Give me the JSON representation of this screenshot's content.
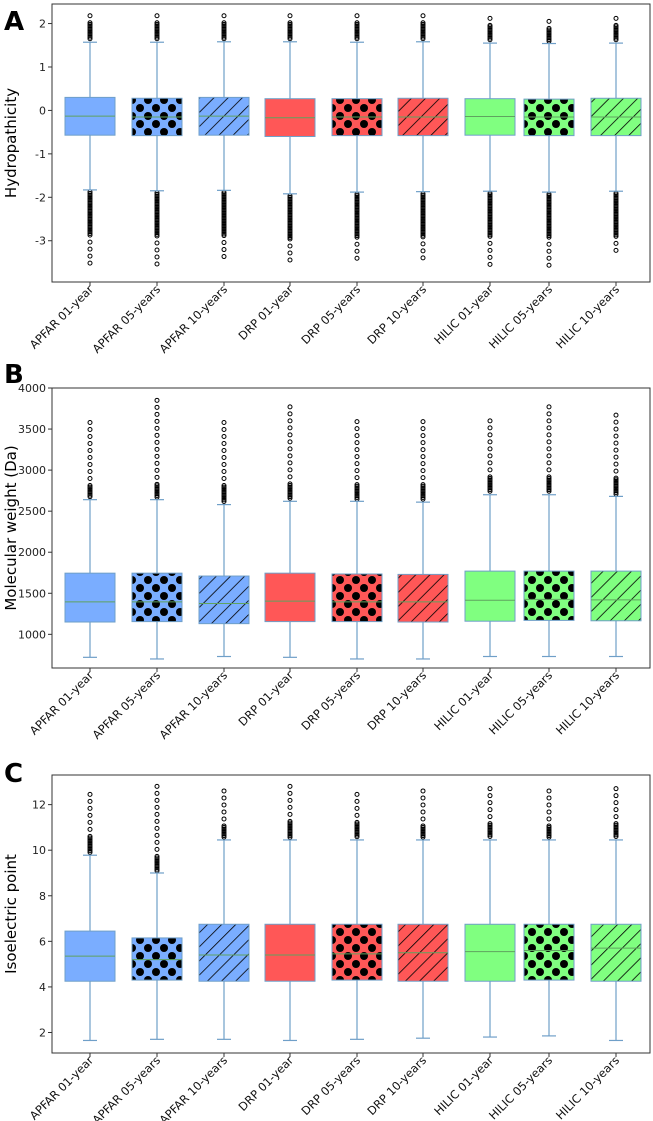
{
  "colors": {
    "APFAR": "#7aadff",
    "DRP": "#ff5757",
    "HILIC": "#80ff80",
    "median": "#5fa35f",
    "whisker": "#6f9fc8",
    "outline": "#6f9fc8"
  },
  "chart_data": [
    {
      "type": "box",
      "panel_label": "A",
      "title": "",
      "xlabel": "",
      "ylabel": "Hydropathicity",
      "ylim": [
        -3.95,
        2.45
      ],
      "yticks": [
        -3,
        -2,
        -1,
        0,
        1,
        2
      ],
      "categories": [
        "APFAR 01-year",
        "APFAR 05-years",
        "APFAR 10-years",
        "DRP 01-year",
        "DRP 05-years",
        "DRP 10-years",
        "HILIC 01-year",
        "HILIC 05-years",
        "HILIC 10-years"
      ],
      "groups": [
        "APFAR",
        "APFAR",
        "APFAR",
        "DRP",
        "DRP",
        "DRP",
        "HILIC",
        "HILIC",
        "HILIC"
      ],
      "patterns": [
        "solid",
        "dots",
        "hatch",
        "solid",
        "dots",
        "hatch",
        "solid",
        "dots",
        "hatch"
      ],
      "boxes": [
        {
          "q1": -0.57,
          "median": -0.13,
          "q3": 0.3,
          "whisker_low": -1.83,
          "whisker_high": 1.57,
          "outlier_low": -3.6,
          "outlier_high": 2.18
        },
        {
          "q1": -0.58,
          "median": -0.15,
          "q3": 0.28,
          "whisker_low": -1.85,
          "whisker_high": 1.57,
          "outlier_low": -3.65,
          "outlier_high": 2.18
        },
        {
          "q1": -0.57,
          "median": -0.13,
          "q3": 0.3,
          "whisker_low": -1.84,
          "whisker_high": 1.58,
          "outlier_low": -3.48,
          "outlier_high": 2.18
        },
        {
          "q1": -0.6,
          "median": -0.17,
          "q3": 0.27,
          "whisker_low": -1.92,
          "whisker_high": 1.58,
          "outlier_low": -3.6,
          "outlier_high": 2.18
        },
        {
          "q1": -0.58,
          "median": -0.15,
          "q3": 0.27,
          "whisker_low": -1.88,
          "whisker_high": 1.57,
          "outlier_low": -3.5,
          "outlier_high": 2.18
        },
        {
          "q1": -0.58,
          "median": -0.15,
          "q3": 0.28,
          "whisker_low": -1.87,
          "whisker_high": 1.58,
          "outlier_low": -3.42,
          "outlier_high": 2.18
        },
        {
          "q1": -0.57,
          "median": -0.14,
          "q3": 0.27,
          "whisker_low": -1.86,
          "whisker_high": 1.55,
          "outlier_low": -3.65,
          "outlier_high": 2.12
        },
        {
          "q1": -0.58,
          "median": -0.15,
          "q3": 0.26,
          "whisker_low": -1.88,
          "whisker_high": 1.54,
          "outlier_low": -3.6,
          "outlier_high": 2.05
        },
        {
          "q1": -0.58,
          "median": -0.15,
          "q3": 0.28,
          "whisker_low": -1.86,
          "whisker_high": 1.55,
          "outlier_low": -3.38,
          "outlier_high": 2.12
        }
      ]
    },
    {
      "type": "box",
      "panel_label": "B",
      "title": "",
      "xlabel": "",
      "ylabel": "Molecular weight (Da)",
      "ylim": [
        590,
        4000
      ],
      "yticks": [
        1000,
        1500,
        2000,
        2500,
        3000,
        3500,
        4000
      ],
      "categories": [
        "APFAR 01-year",
        "APFAR 05-years",
        "APFAR 10-years",
        "DRP 01-year",
        "DRP 05-years",
        "DRP 10-years",
        "HILIC 01-year",
        "HILIC 05-years",
        "HILIC 10-years"
      ],
      "groups": [
        "APFAR",
        "APFAR",
        "APFAR",
        "DRP",
        "DRP",
        "DRP",
        "HILIC",
        "HILIC",
        "HILIC"
      ],
      "patterns": [
        "solid",
        "dots",
        "hatch",
        "solid",
        "dots",
        "hatch",
        "solid",
        "dots",
        "hatch"
      ],
      "boxes": [
        {
          "q1": 1150,
          "median": 1395,
          "q3": 1745,
          "whisker_low": 720,
          "whisker_high": 2640,
          "outlier_low": null,
          "outlier_high": 3580
        },
        {
          "q1": 1155,
          "median": 1395,
          "q3": 1745,
          "whisker_low": 700,
          "whisker_high": 2640,
          "outlier_low": null,
          "outlier_high": 3850
        },
        {
          "q1": 1130,
          "median": 1375,
          "q3": 1710,
          "whisker_low": 730,
          "whisker_high": 2580,
          "outlier_low": null,
          "outlier_high": 3580
        },
        {
          "q1": 1155,
          "median": 1405,
          "q3": 1745,
          "whisker_low": 720,
          "whisker_high": 2620,
          "outlier_low": null,
          "outlier_high": 3770
        },
        {
          "q1": 1155,
          "median": 1395,
          "q3": 1735,
          "whisker_low": 700,
          "whisker_high": 2620,
          "outlier_low": null,
          "outlier_high": 3590
        },
        {
          "q1": 1150,
          "median": 1395,
          "q3": 1730,
          "whisker_low": 700,
          "whisker_high": 2610,
          "outlier_low": null,
          "outlier_high": 3590
        },
        {
          "q1": 1160,
          "median": 1415,
          "q3": 1770,
          "whisker_low": 730,
          "whisker_high": 2700,
          "outlier_low": null,
          "outlier_high": 3600
        },
        {
          "q1": 1170,
          "median": 1425,
          "q3": 1770,
          "whisker_low": 730,
          "whisker_high": 2700,
          "outlier_low": null,
          "outlier_high": 3770
        },
        {
          "q1": 1165,
          "median": 1420,
          "q3": 1770,
          "whisker_low": 730,
          "whisker_high": 2680,
          "outlier_low": null,
          "outlier_high": 3670
        }
      ]
    },
    {
      "type": "box",
      "panel_label": "C",
      "title": "",
      "xlabel": "",
      "ylabel": "Isoelectric point",
      "ylim": [
        1.1,
        13.3
      ],
      "yticks": [
        2,
        4,
        6,
        8,
        10,
        12
      ],
      "categories": [
        "APFAR 01-year",
        "APFAR 05-years",
        "APFAR 10-years",
        "DRP 01-year",
        "DRP 05-years",
        "DRP 10-years",
        "HILIC 01-year",
        "HILIC 05-years",
        "HILIC 10-years"
      ],
      "groups": [
        "APFAR",
        "APFAR",
        "APFAR",
        "DRP",
        "DRP",
        "DRP",
        "HILIC",
        "HILIC",
        "HILIC"
      ],
      "patterns": [
        "solid",
        "dots",
        "hatch",
        "solid",
        "dots",
        "hatch",
        "solid",
        "dots",
        "hatch"
      ],
      "boxes": [
        {
          "q1": 4.25,
          "median": 5.35,
          "q3": 6.45,
          "whisker_low": 1.65,
          "whisker_high": 9.78,
          "outlier_low": null,
          "outlier_high": 12.45
        },
        {
          "q1": 4.3,
          "median": 5.2,
          "q3": 6.15,
          "whisker_low": 1.7,
          "whisker_high": 9.0,
          "outlier_low": null,
          "outlier_high": 12.8
        },
        {
          "q1": 4.25,
          "median": 5.4,
          "q3": 6.75,
          "whisker_low": 1.7,
          "whisker_high": 10.45,
          "outlier_low": null,
          "outlier_high": 12.6
        },
        {
          "q1": 4.25,
          "median": 5.4,
          "q3": 6.75,
          "whisker_low": 1.65,
          "whisker_high": 10.45,
          "outlier_low": null,
          "outlier_high": 12.8
        },
        {
          "q1": 4.3,
          "median": 5.45,
          "q3": 6.75,
          "whisker_low": 1.7,
          "whisker_high": 10.45,
          "outlier_low": null,
          "outlier_high": 12.45
        },
        {
          "q1": 4.25,
          "median": 5.5,
          "q3": 6.75,
          "whisker_low": 1.75,
          "whisker_high": 10.45,
          "outlier_low": null,
          "outlier_high": 12.6
        },
        {
          "q1": 4.25,
          "median": 5.55,
          "q3": 6.75,
          "whisker_low": 1.8,
          "whisker_high": 10.45,
          "outlier_low": null,
          "outlier_high": 12.7
        },
        {
          "q1": 4.3,
          "median": 5.6,
          "q3": 6.75,
          "whisker_low": 1.85,
          "whisker_high": 10.45,
          "outlier_low": null,
          "outlier_high": 12.6
        },
        {
          "q1": 4.25,
          "median": 5.7,
          "q3": 6.75,
          "whisker_low": 1.65,
          "whisker_high": 10.45,
          "outlier_low": null,
          "outlier_high": 12.7
        }
      ]
    }
  ]
}
